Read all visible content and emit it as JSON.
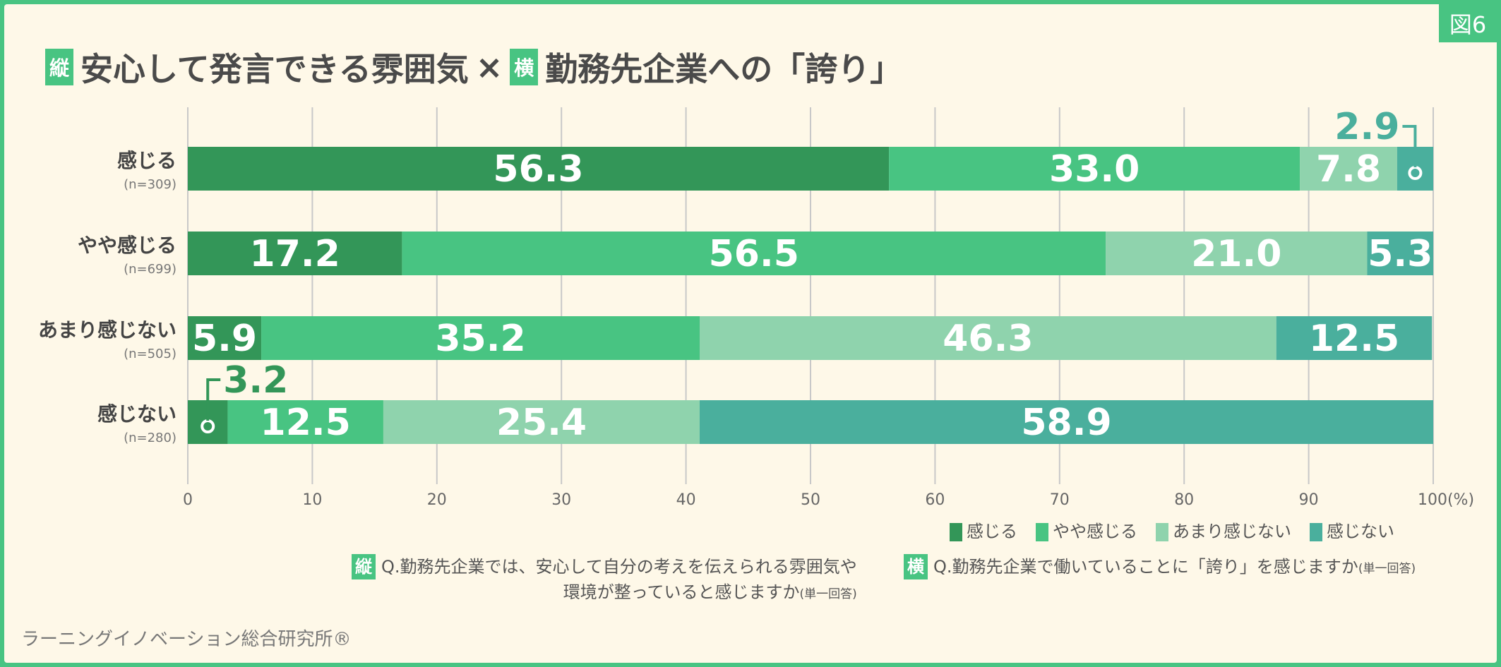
{
  "figure_label": "図6",
  "title": {
    "tag1": "縦",
    "part1": "安心して発言できる雰囲気",
    "times": "×",
    "tag2": "横",
    "part2": "勤務先企業への「誇り」"
  },
  "chart_data": {
    "type": "bar",
    "orientation": "horizontal",
    "stacked": true,
    "categories": [
      "感じる",
      "やや感じる",
      "あまり感じない",
      "感じない"
    ],
    "category_n": [
      "(n=309)",
      "(n=699)",
      "(n=505)",
      "(n=280)"
    ],
    "series": [
      {
        "name": "感じる",
        "color": "#339658",
        "values": [
          56.3,
          17.2,
          5.9,
          3.2
        ]
      },
      {
        "name": "やや感じる",
        "color": "#48c482",
        "values": [
          33.0,
          56.5,
          35.2,
          12.5
        ]
      },
      {
        "name": "あまり感じない",
        "color": "#8fd3ad",
        "values": [
          7.8,
          21.0,
          46.3,
          25.4
        ]
      },
      {
        "name": "感じない",
        "color": "#4aaf9d",
        "values": [
          2.9,
          5.3,
          12.5,
          58.9
        ]
      }
    ],
    "xlim": [
      0,
      100
    ],
    "xticks": [
      "0",
      "10",
      "20",
      "30",
      "40",
      "50",
      "60",
      "70",
      "80",
      "90",
      "100(%)"
    ],
    "grid": true,
    "legend": "bottom-right"
  },
  "notes": {
    "vertical": {
      "tag": "縦",
      "line1": "Q.勤務先企業では、安心して自分の考えを伝えられる雰囲気や",
      "line2": "環境が整っていると感じますか",
      "suffix": "(単一回答)"
    },
    "horizontal": {
      "tag": "横",
      "line1": "Q.勤務先企業で働いていることに「誇り」を感じますか",
      "suffix": "(単一回答)"
    }
  },
  "brand": "ラーニングイノベーション総合研究所®"
}
